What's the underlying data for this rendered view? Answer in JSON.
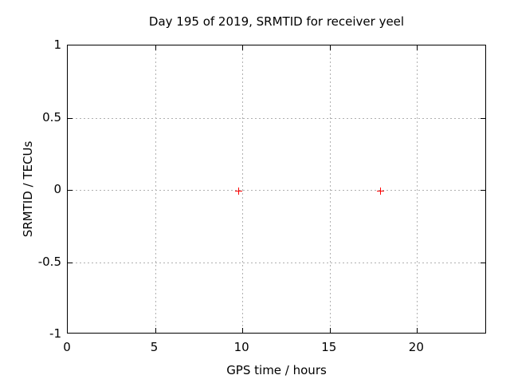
{
  "chart_data": {
    "type": "scatter",
    "title": "Day 195 of 2019, SRMTID for receiver yeel",
    "xlabel": "GPS time / hours",
    "ylabel": "SRMTID / TECUs",
    "xlim": [
      0,
      24
    ],
    "ylim": [
      -1,
      1
    ],
    "grid": true,
    "legend": false,
    "xticks": [
      {
        "value": 0,
        "label": "0"
      },
      {
        "value": 5,
        "label": "5"
      },
      {
        "value": 10,
        "label": "10"
      },
      {
        "value": 15,
        "label": "15"
      },
      {
        "value": 20,
        "label": "20"
      }
    ],
    "yticks": [
      {
        "value": 1,
        "label": "1"
      },
      {
        "value": 0.5,
        "label": "0.5"
      },
      {
        "value": 0,
        "label": "0"
      },
      {
        "value": -0.5,
        "label": "-0.5"
      },
      {
        "value": -1,
        "label": "-1"
      }
    ],
    "series": [
      {
        "name": "SRMTID",
        "marker": "plus",
        "color": "#ff0000",
        "points": [
          {
            "x": 9.8,
            "y": -0.01
          },
          {
            "x": 17.9,
            "y": -0.01
          }
        ]
      }
    ]
  },
  "colors": {
    "background": "#ffffff",
    "border": "#000000",
    "grid": "#b0b0b0",
    "text": "#000000"
  }
}
